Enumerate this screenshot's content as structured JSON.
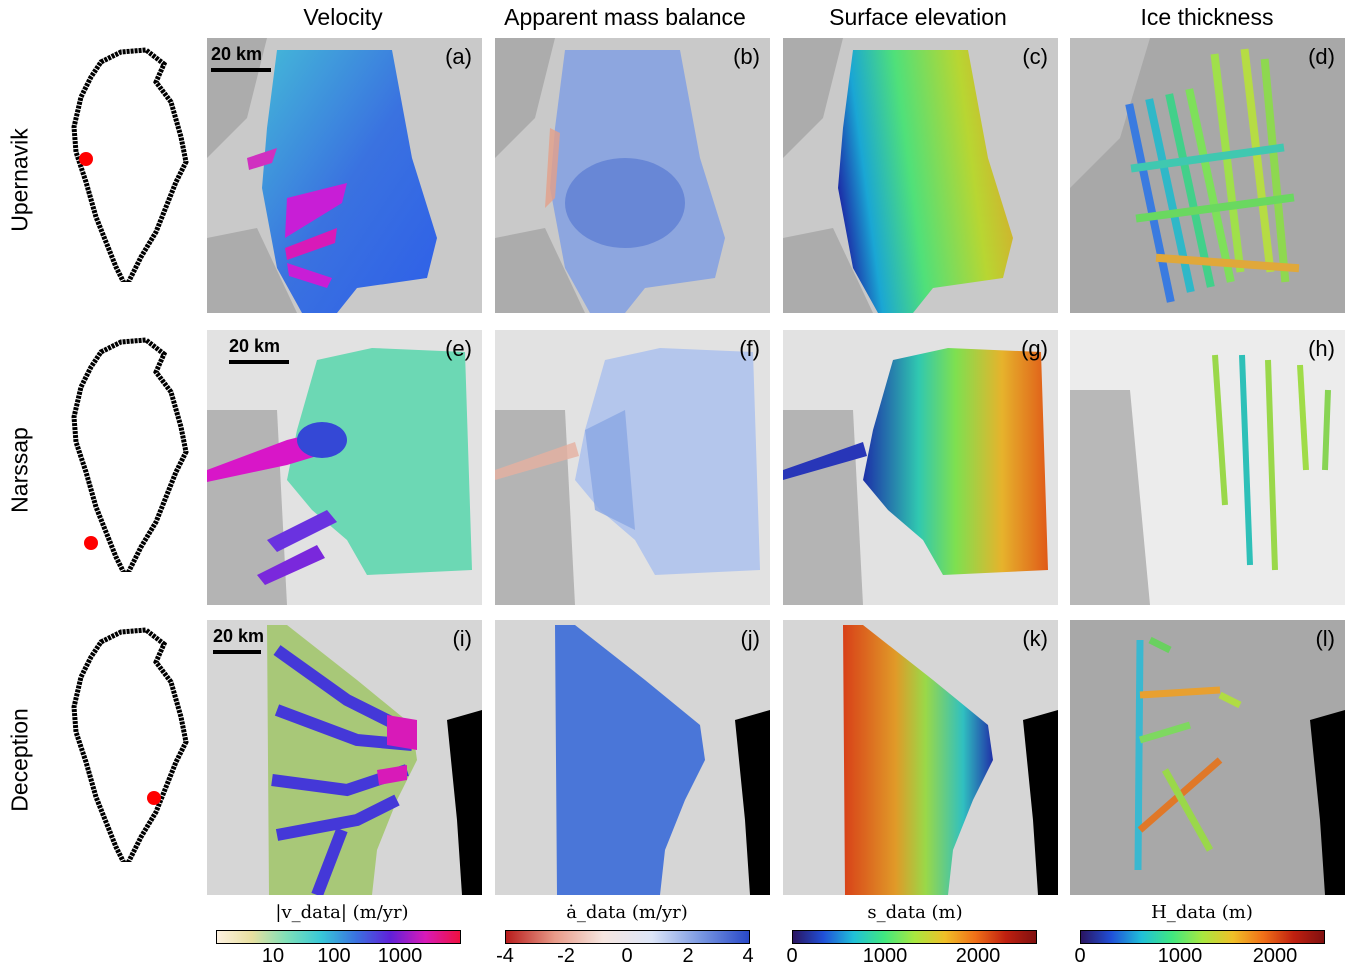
{
  "columns": [
    "Velocity",
    "Apparent mass balance",
    "Surface elevation",
    "Ice thickness"
  ],
  "rows": [
    "Upernavik",
    "Narssap",
    "Deception"
  ],
  "panel_labels": [
    "(a)",
    "(b)",
    "(c)",
    "(d)",
    "(e)",
    "(f)",
    "(g)",
    "(h)",
    "(i)",
    "(j)",
    "(k)",
    "(l)"
  ],
  "scale_bar": "20 km",
  "colorbars": {
    "velocity": {
      "title": "|v_data| (m/yr)",
      "ticks": [
        "10",
        "100",
        "1000"
      ]
    },
    "mass_balance": {
      "title": "ȧ_data (m/yr)",
      "ticks": [
        "-4",
        "-2",
        "0",
        "2",
        "4"
      ]
    },
    "elevation": {
      "title": "s_data (m)",
      "ticks": [
        "0",
        "1000",
        "2000"
      ]
    },
    "thickness": {
      "title": "H_data (m)",
      "ticks": [
        "0",
        "1000",
        "2000"
      ]
    }
  },
  "colors": {
    "location_marker": "#ff0000",
    "outline": "#000000",
    "ocean": "#000000"
  }
}
